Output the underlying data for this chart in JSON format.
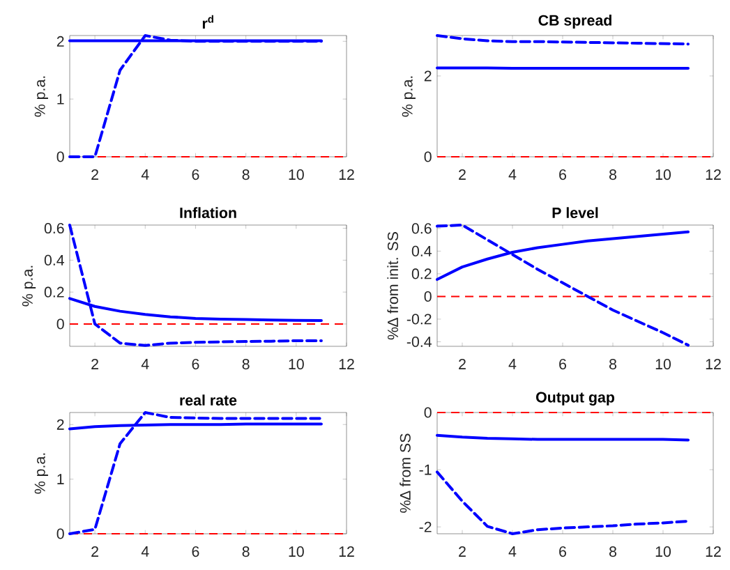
{
  "chart_data": [
    {
      "type": "line",
      "title": "**r$^{d}$**",
      "ylabel": "% p.a.",
      "x": [
        1,
        2,
        3,
        4,
        5,
        6,
        7,
        8,
        9,
        10,
        11
      ],
      "xlim": [
        1,
        12
      ],
      "xticks": [
        2,
        4,
        6,
        8,
        10,
        12
      ],
      "ylim": [
        0,
        2.1
      ],
      "yticks": [
        0,
        1,
        2
      ],
      "series": [
        {
          "color": "#0000ff",
          "line_style": "solid",
          "values": [
            2.01,
            2.01,
            2.01,
            2.01,
            2.01,
            2.01,
            2.01,
            2.01,
            2.01,
            2.01,
            2.01
          ]
        },
        {
          "color": "#0000ff",
          "line_style": "dashed",
          "values": [
            0,
            0,
            1.5,
            2.1,
            2.02,
            2.0,
            2.0,
            2.0,
            2.0,
            2.0,
            2.0
          ]
        }
      ],
      "ref_lines": [
        {
          "axis": "y",
          "value": 0,
          "color": "#ff0000",
          "line_style": "dashed"
        }
      ]
    },
    {
      "type": "line",
      "title": "CB spread",
      "ylabel": "% p.a.",
      "x": [
        1,
        2,
        3,
        4,
        5,
        6,
        7,
        8,
        9,
        10,
        11
      ],
      "xlim": [
        1,
        12
      ],
      "xticks": [
        2,
        4,
        6,
        8,
        10,
        12
      ],
      "ylim": [
        0,
        3
      ],
      "yticks": [
        0,
        2
      ],
      "series": [
        {
          "color": "#0000ff",
          "line_style": "solid",
          "values": [
            2.2,
            2.2,
            2.2,
            2.19,
            2.19,
            2.19,
            2.19,
            2.19,
            2.19,
            2.19,
            2.19
          ]
        },
        {
          "color": "#0000ff",
          "line_style": "dashed",
          "values": [
            3.0,
            2.92,
            2.87,
            2.85,
            2.85,
            2.84,
            2.83,
            2.82,
            2.81,
            2.8,
            2.79
          ]
        }
      ],
      "ref_lines": [
        {
          "axis": "y",
          "value": 0,
          "color": "#ff0000",
          "line_style": "dashed"
        }
      ]
    },
    {
      "type": "line",
      "title": "Inflation",
      "ylabel": "% p.a.",
      "x": [
        1,
        2,
        3,
        4,
        5,
        6,
        7,
        8,
        9,
        10,
        11
      ],
      "xlim": [
        1,
        12
      ],
      "xticks": [
        2,
        4,
        6,
        8,
        10,
        12
      ],
      "ylim": [
        -0.14,
        0.62
      ],
      "yticks": [
        0,
        0.2,
        0.4,
        0.6
      ],
      "series": [
        {
          "color": "#0000ff",
          "line_style": "solid",
          "values": [
            0.16,
            0.11,
            0.08,
            0.06,
            0.045,
            0.035,
            0.03,
            0.028,
            0.025,
            0.023,
            0.022
          ]
        },
        {
          "color": "#0000ff",
          "line_style": "dashed",
          "values": [
            0.62,
            0.0,
            -0.12,
            -0.135,
            -0.12,
            -0.115,
            -0.112,
            -0.11,
            -0.108,
            -0.105,
            -0.105
          ]
        }
      ],
      "ref_lines": [
        {
          "axis": "y",
          "value": 0,
          "color": "#ff0000",
          "line_style": "dashed"
        }
      ]
    },
    {
      "type": "line",
      "title": "P level",
      "ylabel": "%∆ from init. SS",
      "x": [
        1,
        2,
        3,
        4,
        5,
        6,
        7,
        8,
        9,
        10,
        11
      ],
      "xlim": [
        1,
        12
      ],
      "xticks": [
        2,
        4,
        6,
        8,
        10,
        12
      ],
      "ylim": [
        -0.44,
        0.63
      ],
      "yticks": [
        -0.4,
        -0.2,
        0,
        0.2,
        0.4,
        0.6
      ],
      "series": [
        {
          "color": "#0000ff",
          "line_style": "solid",
          "values": [
            0.15,
            0.26,
            0.33,
            0.39,
            0.43,
            0.46,
            0.49,
            0.51,
            0.53,
            0.55,
            0.57
          ]
        },
        {
          "color": "#0000ff",
          "line_style": "dashed",
          "values": [
            0.62,
            0.63,
            0.5,
            0.37,
            0.24,
            0.12,
            0.0,
            -0.12,
            -0.22,
            -0.32,
            -0.43
          ]
        }
      ],
      "ref_lines": [
        {
          "axis": "y",
          "value": 0,
          "color": "#ff0000",
          "line_style": "dashed"
        }
      ]
    },
    {
      "type": "line",
      "title": "real rate",
      "ylabel": "% p.a.",
      "x": [
        1,
        2,
        3,
        4,
        5,
        6,
        7,
        8,
        9,
        10,
        11
      ],
      "xlim": [
        1,
        12
      ],
      "xticks": [
        2,
        4,
        6,
        8,
        10,
        12
      ],
      "ylim": [
        0,
        2.22
      ],
      "yticks": [
        0,
        1,
        2
      ],
      "series": [
        {
          "color": "#0000ff",
          "line_style": "solid",
          "values": [
            1.92,
            1.96,
            1.98,
            1.99,
            2.0,
            2.0,
            2.0,
            2.01,
            2.01,
            2.01,
            2.01
          ]
        },
        {
          "color": "#0000ff",
          "line_style": "dashed",
          "values": [
            0,
            0.08,
            1.65,
            2.22,
            2.13,
            2.12,
            2.11,
            2.11,
            2.11,
            2.11,
            2.11
          ]
        }
      ],
      "ref_lines": [
        {
          "axis": "y",
          "value": 0,
          "color": "#ff0000",
          "line_style": "dashed"
        }
      ]
    },
    {
      "type": "line",
      "title": "Output gap",
      "ylabel": "%∆ from SS",
      "x": [
        1,
        2,
        3,
        4,
        5,
        6,
        7,
        8,
        9,
        10,
        11
      ],
      "xlim": [
        1,
        12
      ],
      "xticks": [
        2,
        4,
        6,
        8,
        10,
        12
      ],
      "ylim": [
        -2.12,
        0
      ],
      "yticks": [
        -2,
        -1,
        0
      ],
      "series": [
        {
          "color": "#0000ff",
          "line_style": "solid",
          "values": [
            -0.4,
            -0.43,
            -0.45,
            -0.46,
            -0.47,
            -0.47,
            -0.47,
            -0.47,
            -0.47,
            -0.47,
            -0.48
          ]
        },
        {
          "color": "#0000ff",
          "line_style": "dashed",
          "values": [
            -1.04,
            -1.55,
            -1.99,
            -2.12,
            -2.05,
            -2.02,
            -2.0,
            -1.98,
            -1.95,
            -1.93,
            -1.9
          ]
        }
      ],
      "ref_lines": [
        {
          "axis": "y",
          "value": 0,
          "color": "#ff0000",
          "line_style": "dashed"
        }
      ]
    }
  ]
}
